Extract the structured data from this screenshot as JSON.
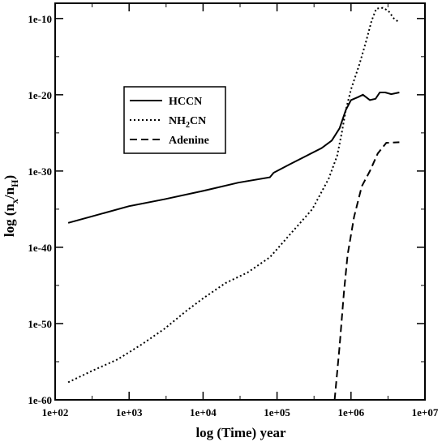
{
  "chart_data": {
    "type": "line",
    "x_scale": "log",
    "y_scale": "log",
    "xlim": [
      100,
      10000000
    ],
    "ylim": [
      1e-60,
      1e-08
    ],
    "x_ticks": [
      {
        "value": 100,
        "label": "1e+02"
      },
      {
        "value": 1000,
        "label": "1e+03"
      },
      {
        "value": 10000,
        "label": "1e+04"
      },
      {
        "value": 100000,
        "label": "1e+05"
      },
      {
        "value": 1000000,
        "label": "1e+06"
      },
      {
        "value": 10000000,
        "label": "1e+07"
      }
    ],
    "y_ticks": [
      {
        "value": 1e-60,
        "label": "1e-60"
      },
      {
        "value": 1e-50,
        "label": "1e-50"
      },
      {
        "value": 1e-40,
        "label": "1e-40"
      },
      {
        "value": 1e-30,
        "label": "1e-30"
      },
      {
        "value": 1e-20,
        "label": "1e-20"
      },
      {
        "value": 1e-10,
        "label": "1e-10"
      }
    ],
    "xlabel": "log (Time) year",
    "ylabel": {
      "base": "log (n",
      "sub1": "x",
      "mid": "/n",
      "sub2": "H",
      "end": ")"
    },
    "legend_placement": "upper-left",
    "series": [
      {
        "name": "HCCN",
        "dash": "solid",
        "points": [
          [
            150,
            1.6e-37
          ],
          [
            300,
            1e-36
          ],
          [
            1000,
            2.5e-35
          ],
          [
            3000,
            2e-34
          ],
          [
            10000,
            2.5e-33
          ],
          [
            30000,
            3e-32
          ],
          [
            80000,
            1.5e-31
          ],
          [
            90000,
            6e-31
          ],
          [
            150000,
            8e-30
          ],
          [
            250000,
            1e-28
          ],
          [
            400000,
            1e-27
          ],
          [
            550000,
            1e-26
          ],
          [
            700000,
            4e-25
          ],
          [
            850000,
            1e-22
          ],
          [
            1000000,
            2e-21
          ],
          [
            1250000,
            5e-21
          ],
          [
            1450000,
            1e-20
          ],
          [
            1800000,
            2e-21
          ],
          [
            2150000,
            3e-21
          ],
          [
            2450000,
            2e-20
          ],
          [
            2900000,
            2e-20
          ],
          [
            3500000,
            1.2e-20
          ],
          [
            4500000,
            2e-20
          ]
        ]
      },
      {
        "name": "NH2CN",
        "legend_html": "NH<tspan dy='4' font-size='10'>2</tspan><tspan dy='-4'>CN</tspan>",
        "dash": "dotted",
        "points": [
          [
            150,
            2e-58
          ],
          [
            300,
            5e-57
          ],
          [
            700,
            2e-55
          ],
          [
            1500,
            2e-53
          ],
          [
            3000,
            2e-51
          ],
          [
            6000,
            5e-49
          ],
          [
            10000,
            2e-47
          ],
          [
            20000,
            2e-45
          ],
          [
            40000,
            5e-44
          ],
          [
            80000,
            5e-42
          ],
          [
            150000,
            5e-39
          ],
          [
            300000,
            1e-35
          ],
          [
            500000,
            1e-31
          ],
          [
            650000,
            1e-28
          ],
          [
            750000,
            1e-25
          ],
          [
            850000,
            1e-22
          ],
          [
            1000000,
            5e-20
          ],
          [
            1300000,
            1e-16
          ],
          [
            1600000,
            1e-13
          ],
          [
            1900000,
            5e-11
          ],
          [
            2200000,
            2e-09
          ],
          [
            2700000,
            2.5e-09
          ],
          [
            3200000,
            1e-09
          ],
          [
            3800000,
            1e-10
          ],
          [
            4500000,
            3e-11
          ]
        ]
      },
      {
        "name": "Adenine",
        "dash": "dashed",
        "points": [
          [
            600000,
            1e-60
          ],
          [
            700000,
            1e-53
          ],
          [
            800000,
            1e-46
          ],
          [
            900000,
            1e-41
          ],
          [
            1100000,
            1e-36
          ],
          [
            1400000,
            1e-32
          ],
          [
            1800000,
            1e-30
          ],
          [
            2300000,
            2e-28
          ],
          [
            3000000,
            5e-27
          ],
          [
            4500000,
            6e-27
          ]
        ]
      }
    ]
  }
}
